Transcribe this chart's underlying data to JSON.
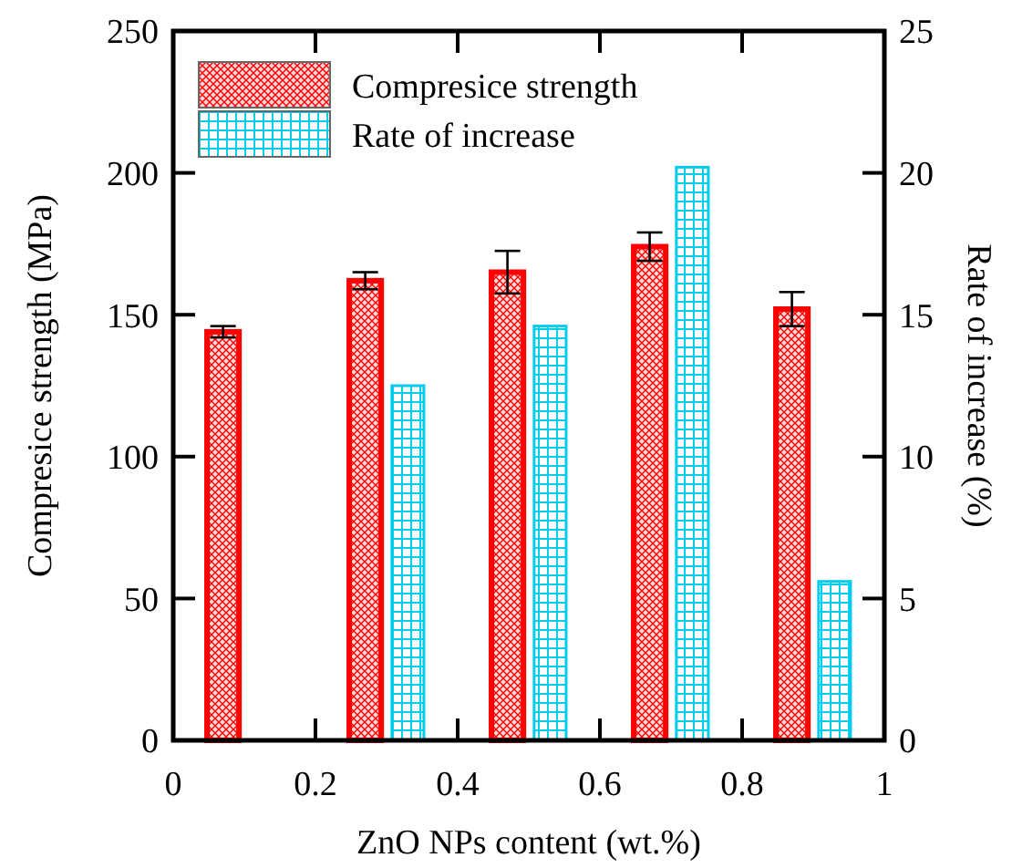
{
  "chart_data": {
    "type": "bar",
    "xlabel": "ZnO NPs content (wt.%)",
    "ylabel": "Compresice strength (MPa)",
    "y2label": "Rate of increase (%)",
    "xlim": [
      0,
      1
    ],
    "xticks": [
      0,
      0.2,
      0.4,
      0.6,
      0.8,
      1
    ],
    "ylim": [
      0,
      250
    ],
    "yticks": [
      0,
      50,
      100,
      150,
      200,
      250
    ],
    "y2lim": [
      0,
      25
    ],
    "y2ticks": [
      0,
      5,
      10,
      15,
      20,
      25
    ],
    "legend": "top left",
    "series": [
      {
        "name": "Compresice strength",
        "color": "#ff0000",
        "x": [
          0.07,
          0.27,
          0.47,
          0.67,
          0.87
        ],
        "values": [
          144,
          162,
          165,
          174,
          152
        ],
        "errors": [
          2,
          3,
          7.5,
          5,
          6
        ]
      },
      {
        "name": "Rate of increase",
        "color": "#00ccee",
        "axis": "y2",
        "x": [
          0.33,
          0.53,
          0.73,
          0.93
        ],
        "values": [
          12.5,
          14.6,
          20.2,
          5.6
        ]
      }
    ]
  }
}
